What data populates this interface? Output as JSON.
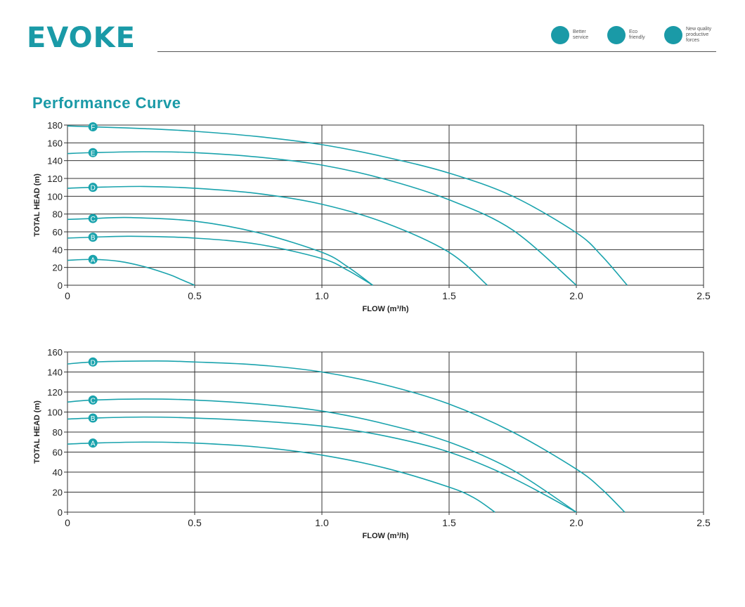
{
  "header": {
    "logo": "EVOKE",
    "badges": [
      {
        "icon": "headset-person-icon",
        "lines": [
          "Better",
          "service"
        ]
      },
      {
        "icon": "globe-leaf-icon",
        "lines": [
          "Eco",
          "friendly"
        ]
      },
      {
        "icon": "gear-icon",
        "lines": [
          "New quality",
          "productive",
          "forces"
        ]
      }
    ]
  },
  "section_title": "Performance Curve",
  "colors": {
    "accent": "#1a9aa7",
    "curve": "#1aa3ad",
    "grid": "#333333"
  },
  "chart_data": [
    {
      "type": "line",
      "xlabel": "FLOW (m³/h)",
      "ylabel": "TOTAL  HEAD (m)",
      "xlim": [
        0,
        2.5
      ],
      "ylim": [
        0,
        180
      ],
      "xticks": [
        "0",
        "0.5",
        "1.0",
        "1.5",
        "2.0",
        "2.5"
      ],
      "yticks": [
        "0",
        "20",
        "40",
        "60",
        "80",
        "100",
        "120",
        "140",
        "160",
        "180"
      ],
      "grid": true,
      "series": [
        {
          "name": "A",
          "label_x": 0.1,
          "x": [
            0,
            0.1,
            0.2,
            0.3,
            0.4,
            0.45,
            0.5
          ],
          "y": [
            28,
            29,
            27,
            21,
            12,
            6,
            0
          ]
        },
        {
          "name": "B",
          "label_x": 0.1,
          "x": [
            0,
            0.1,
            0.25,
            0.5,
            0.75,
            1.0,
            1.1,
            1.2
          ],
          "y": [
            53,
            54,
            55,
            53,
            46,
            30,
            17,
            0
          ]
        },
        {
          "name": "C",
          "label_x": 0.1,
          "x": [
            0,
            0.1,
            0.25,
            0.5,
            0.75,
            1.0,
            1.1,
            1.2
          ],
          "y": [
            74,
            75,
            76,
            72,
            59,
            37,
            21,
            0
          ]
        },
        {
          "name": "D",
          "label_x": 0.1,
          "x": [
            0,
            0.1,
            0.3,
            0.5,
            0.75,
            1.0,
            1.25,
            1.5,
            1.65
          ],
          "y": [
            109,
            110,
            111,
            109,
            103,
            91,
            70,
            37,
            0
          ]
        },
        {
          "name": "E",
          "label_x": 0.1,
          "x": [
            0,
            0.1,
            0.3,
            0.5,
            0.75,
            1.0,
            1.25,
            1.5,
            1.75,
            2.0
          ],
          "y": [
            148,
            149,
            150,
            149,
            144,
            135,
            119,
            96,
            62,
            0
          ]
        },
        {
          "name": "F",
          "label_x": 0.1,
          "x": [
            0,
            0.1,
            0.3,
            0.5,
            0.75,
            1.0,
            1.25,
            1.5,
            1.75,
            2.0,
            2.1,
            2.2
          ],
          "y": [
            179,
            178,
            176,
            173,
            167,
            158,
            144,
            126,
            100,
            59,
            33,
            0
          ]
        }
      ]
    },
    {
      "type": "line",
      "xlabel": "FLOW (m³/h)",
      "ylabel": "TOTAL  HEAD (m)",
      "xlim": [
        0,
        2.5
      ],
      "ylim": [
        0,
        160
      ],
      "xticks": [
        "0",
        "0.5",
        "1.0",
        "1.5",
        "2.0",
        "2.5"
      ],
      "yticks": [
        "0",
        "20",
        "40",
        "60",
        "80",
        "100",
        "120",
        "140",
        "160"
      ],
      "grid": true,
      "series": [
        {
          "name": "A",
          "label_x": 0.1,
          "x": [
            0,
            0.1,
            0.3,
            0.5,
            0.75,
            1.0,
            1.25,
            1.5,
            1.6,
            1.68
          ],
          "y": [
            68,
            69,
            70,
            69,
            65,
            57,
            44,
            25,
            14,
            0
          ]
        },
        {
          "name": "B",
          "label_x": 0.1,
          "x": [
            0,
            0.1,
            0.3,
            0.5,
            0.75,
            1.0,
            1.25,
            1.5,
            1.75,
            2.0
          ],
          "y": [
            93,
            94,
            95,
            94,
            91,
            86,
            76,
            60,
            34,
            0
          ]
        },
        {
          "name": "C",
          "label_x": 0.1,
          "x": [
            0,
            0.1,
            0.3,
            0.5,
            0.75,
            1.0,
            1.25,
            1.5,
            1.75,
            2.0
          ],
          "y": [
            110,
            112,
            113,
            112,
            108,
            101,
            88,
            70,
            42,
            0
          ]
        },
        {
          "name": "D",
          "label_x": 0.1,
          "x": [
            0,
            0.1,
            0.35,
            0.5,
            0.75,
            1.0,
            1.25,
            1.5,
            1.75,
            2.0,
            2.1,
            2.19
          ],
          "y": [
            148,
            150,
            151,
            150,
            147,
            140,
            127,
            108,
            80,
            43,
            23,
            0
          ]
        }
      ]
    }
  ]
}
